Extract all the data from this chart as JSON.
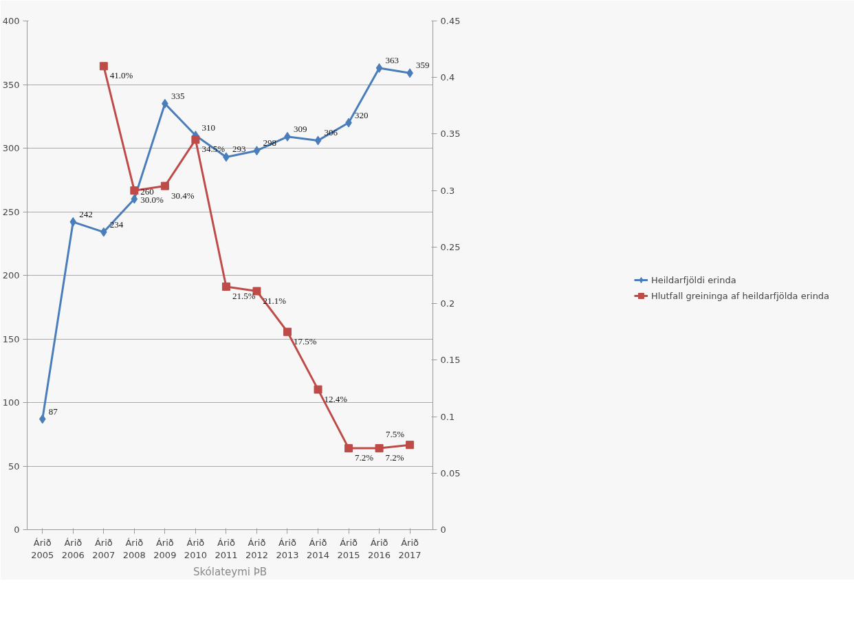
{
  "chart_data": {
    "type": "line",
    "xlabel": "Skólateymi ÞB",
    "categories": [
      "Árið\n2005",
      "Árið\n2006",
      "Árið\n2007",
      "Árið\n2008",
      "Árið\n2009",
      "Árið\n2010",
      "Árið\n2011",
      "Árið\n2012",
      "Árið\n2013",
      "Árið\n2014",
      "Árið\n2015",
      "Árið\n2016",
      "Árið\n2017"
    ],
    "series": [
      {
        "name": "Heildarfjöldi erinda",
        "color": "#4a7ebb",
        "marker": "diamond",
        "values": [
          87,
          242,
          234,
          260,
          335,
          310,
          293,
          298,
          309,
          306,
          320,
          363,
          359
        ],
        "value_labels": [
          "87",
          "242",
          "234",
          "260",
          "335",
          "310",
          "293",
          "298",
          "309",
          "306",
          "320",
          "363",
          "359"
        ]
      },
      {
        "name": "Hlutfall greininga af heildarfjölda erinda",
        "color": "#be4b48",
        "marker": "square",
        "axis": "y2",
        "values": [
          null,
          null,
          0.41,
          0.3,
          0.304,
          0.345,
          0.215,
          0.211,
          0.175,
          0.124,
          0.072,
          0.072,
          0.075
        ],
        "value_labels": [
          null,
          null,
          "41.0%",
          "30.0%",
          "30.4%",
          "34.5%",
          "21.5%",
          "21.1%",
          "17.5%",
          "12.4%",
          "7.2%",
          "7.2%",
          "7.5%"
        ]
      }
    ],
    "ylim": [
      0,
      400
    ],
    "yticks": [
      0,
      50,
      100,
      150,
      200,
      250,
      300,
      350,
      400
    ],
    "y2lim": [
      0,
      0.45
    ],
    "y2ticks": [
      0,
      {
        "value": 0.05,
        "label": "0.05"
      },
      {
        "value": 0.1,
        "label": "0.1"
      },
      {
        "value": 0.15,
        "label": "0.15"
      },
      {
        "value": 0.2,
        "label": "0.2"
      },
      {
        "value": 0.25,
        "label": "0.25"
      },
      {
        "value": 0.3,
        "label": "0.3"
      },
      {
        "value": 0.35,
        "label": "0.35"
      },
      {
        "value": 0.4,
        "label": "0.4"
      },
      {
        "value": 0.45,
        "label": "0.45"
      }
    ],
    "grid": "y",
    "legend": "right"
  }
}
